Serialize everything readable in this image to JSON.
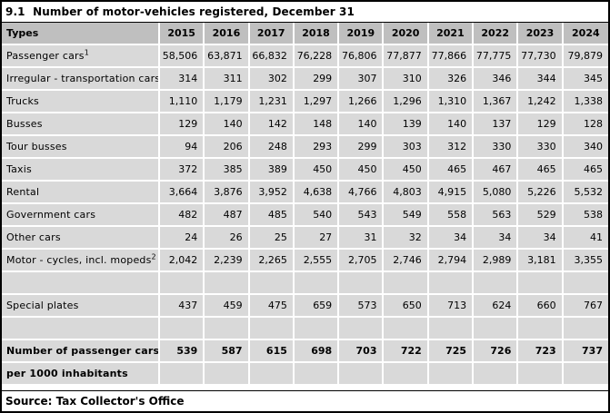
{
  "title": "9.1  Number of motor-vehicles registered, December 31",
  "columns": {
    "label": "Types",
    "years": [
      "2015",
      "2016",
      "2017",
      "2018",
      "2019",
      "2020",
      "2021",
      "2022",
      "2023",
      "2024"
    ]
  },
  "rows": [
    {
      "label": "Passenger cars",
      "sup": "1",
      "bold": false,
      "values": [
        "58,506",
        "63,871",
        "66,832",
        "76,228",
        "76,806",
        "77,877",
        "77,866",
        "77,775",
        "77,730",
        "79,879"
      ]
    },
    {
      "label": "Irregular - transportation cars",
      "sup": "",
      "bold": false,
      "values": [
        "314",
        "311",
        "302",
        "299",
        "307",
        "310",
        "326",
        "346",
        "344",
        "345"
      ]
    },
    {
      "label": "Trucks",
      "sup": "",
      "bold": false,
      "values": [
        "1,110",
        "1,179",
        "1,231",
        "1,297",
        "1,266",
        "1,296",
        "1,310",
        "1,367",
        "1,242",
        "1,338"
      ]
    },
    {
      "label": "Busses",
      "sup": "",
      "bold": false,
      "values": [
        "129",
        "140",
        "142",
        "148",
        "140",
        "139",
        "140",
        "137",
        "129",
        "128"
      ]
    },
    {
      "label": "Tour busses",
      "sup": "",
      "bold": false,
      "values": [
        "94",
        "206",
        "248",
        "293",
        "299",
        "303",
        "312",
        "330",
        "330",
        "340"
      ]
    },
    {
      "label": "Taxis",
      "sup": "",
      "bold": false,
      "values": [
        "372",
        "385",
        "389",
        "450",
        "450",
        "450",
        "465",
        "467",
        "465",
        "465"
      ]
    },
    {
      "label": "Rental",
      "sup": "",
      "bold": false,
      "values": [
        "3,664",
        "3,876",
        "3,952",
        "4,638",
        "4,766",
        "4,803",
        "4,915",
        "5,080",
        "5,226",
        "5,532"
      ]
    },
    {
      "label": "Government cars",
      "sup": "",
      "bold": false,
      "values": [
        "482",
        "487",
        "485",
        "540",
        "543",
        "549",
        "558",
        "563",
        "529",
        "538"
      ]
    },
    {
      "label": "Other cars",
      "sup": "",
      "bold": false,
      "values": [
        "24",
        "26",
        "25",
        "27",
        "31",
        "32",
        "34",
        "34",
        "34",
        "41"
      ]
    },
    {
      "label": "Motor - cycles, incl. mopeds",
      "sup": "2",
      "bold": false,
      "values": [
        "2,042",
        "2,239",
        "2,265",
        "2,555",
        "2,705",
        "2,746",
        "2,794",
        "2,989",
        "3,181",
        "3,355"
      ]
    },
    {
      "label": "",
      "sup": "",
      "bold": false,
      "values": [
        "",
        "",
        "",
        "",
        "",
        "",
        "",
        "",
        "",
        ""
      ]
    },
    {
      "label": "Special plates",
      "sup": "",
      "bold": false,
      "values": [
        "437",
        "459",
        "475",
        "659",
        "573",
        "650",
        "713",
        "624",
        "660",
        "767"
      ]
    },
    {
      "label": "",
      "sup": "",
      "bold": false,
      "values": [
        "",
        "",
        "",
        "",
        "",
        "",
        "",
        "",
        "",
        ""
      ]
    },
    {
      "label": "Number of passenger cars",
      "sup": "",
      "bold": true,
      "values": [
        "539",
        "587",
        "615",
        "698",
        "703",
        "722",
        "725",
        "726",
        "723",
        "737"
      ]
    },
    {
      "label": "per 1000 inhabitants",
      "sup": "",
      "bold": true,
      "values": [
        "",
        "",
        "",
        "",
        "",
        "",
        "",
        "",
        "",
        ""
      ]
    }
  ],
  "source": "Source: Tax Collector's Office",
  "colors": {
    "header_bg": "#BFBFBF",
    "cell_bg": "#D9D9D9",
    "separator": "#FFFFFF",
    "border": "#000000",
    "text": "#000000"
  }
}
